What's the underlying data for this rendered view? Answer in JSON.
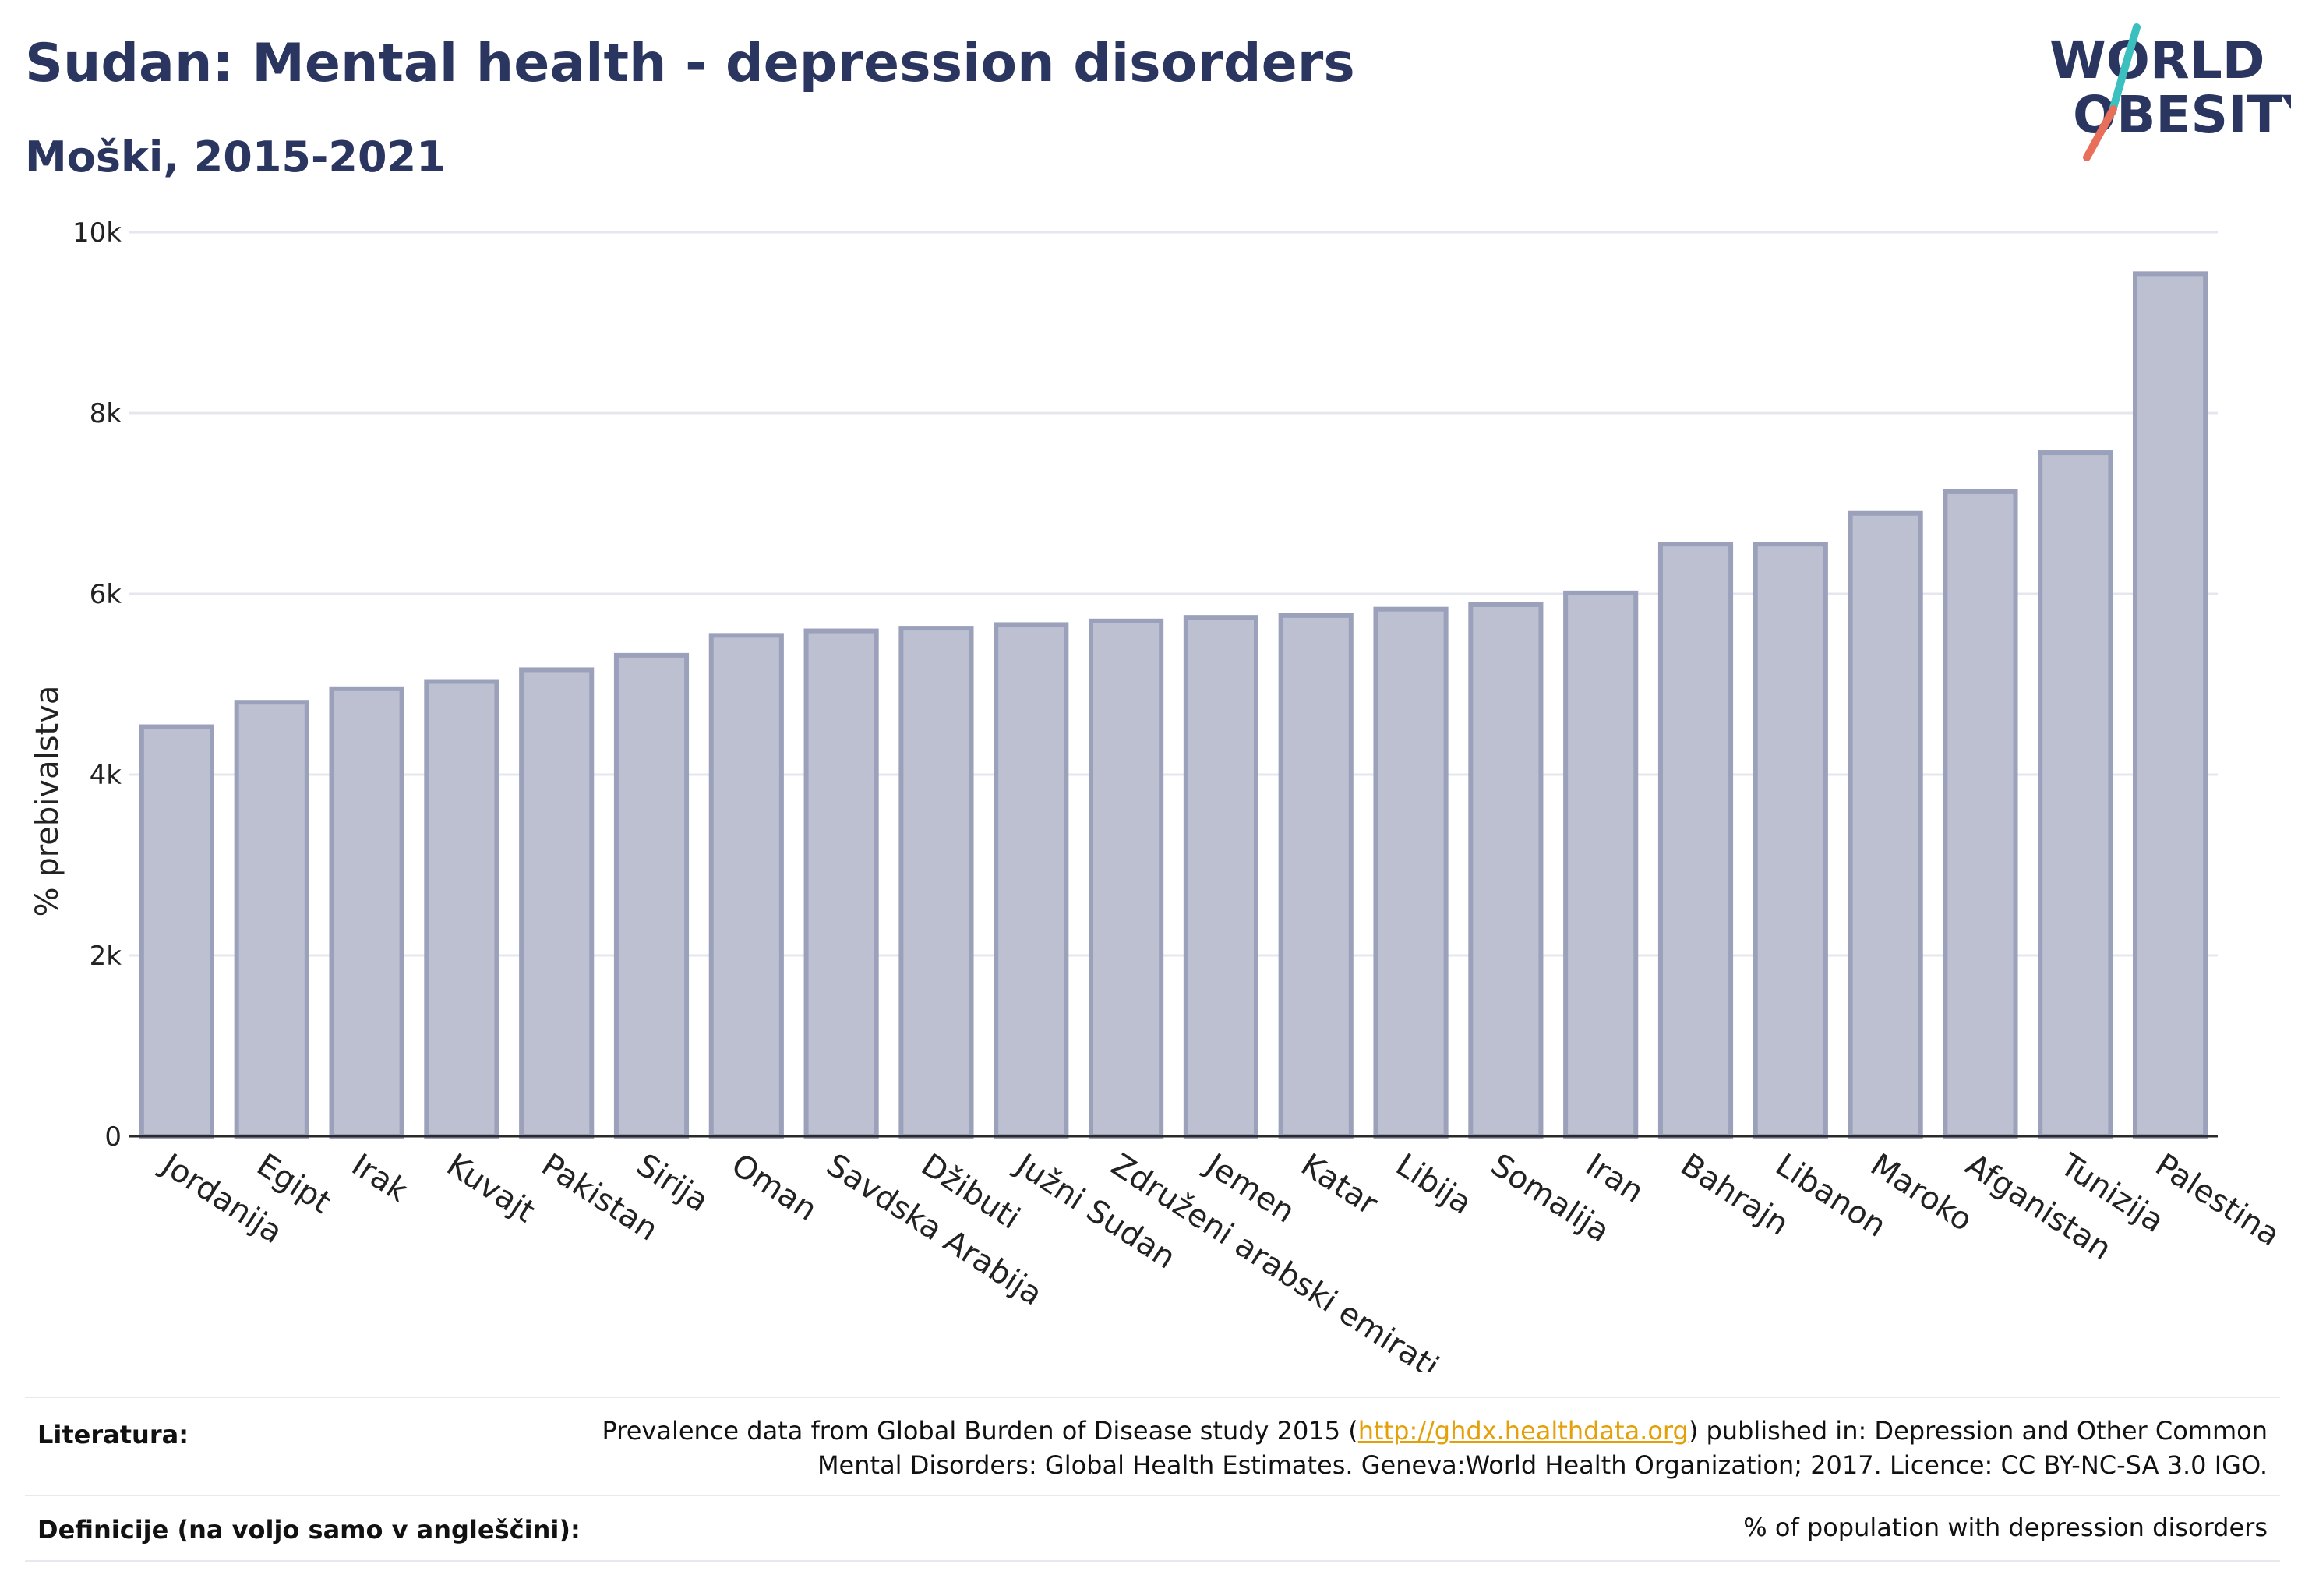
{
  "header": {
    "title": "Sudan: Mental health - depression disorders",
    "subtitle": "Moški, 2015-2021"
  },
  "logo": {
    "line1": "WORLD",
    "line2": "OBESITY",
    "colors": {
      "text": "#2b3660",
      "slash_top": "#3cbfbf",
      "slash_bottom": "#e8705a"
    }
  },
  "chart_data": {
    "type": "bar",
    "title": "",
    "xlabel": "",
    "ylabel": "% prebivalstva",
    "ylim": [
      0,
      10000
    ],
    "yticks": [
      0,
      2000,
      4000,
      6000,
      8000,
      10000
    ],
    "ytick_labels": [
      "0",
      "2k",
      "4k",
      "6k",
      "8k",
      "10k"
    ],
    "grid": true,
    "bar_fill": "#bcc0d0",
    "bar_stroke": "#9ba1ba",
    "categories": [
      "Jordanija",
      "Egipt",
      "Irak",
      "Kuvajt",
      "Pakistan",
      "Sirija",
      "Oman",
      "Savdska Arabija",
      "Džibuti",
      "Južni Sudan",
      "Združeni arabski emirati",
      "Jemen",
      "Katar",
      "Libija",
      "Somalija",
      "Iran",
      "Bahrajn",
      "Libanon",
      "Maroko",
      "Afganistan",
      "Tunizija",
      "Palestina"
    ],
    "values": [
      4530,
      4800,
      4950,
      5030,
      5160,
      5320,
      5540,
      5590,
      5620,
      5660,
      5700,
      5740,
      5760,
      5830,
      5880,
      6010,
      6550,
      6550,
      6890,
      7130,
      7560,
      9540
    ]
  },
  "footer": {
    "sources_label": "Literatura:",
    "sources_text_before": "Prevalence data from Global Burden of Disease study 2015 (",
    "sources_link": "http://ghdx.healthdata.org",
    "sources_text_after": ") published in: Depression and Other Common",
    "sources_line2": "Mental Disorders: Global Health Estimates. Geneva:World Health Organization; 2017. Licence: CC BY-NC-SA 3.0 IGO.",
    "definitions_label": "Definicije (na voljo samo v angleščini):",
    "definitions_text": "% of population with depression disorders"
  }
}
